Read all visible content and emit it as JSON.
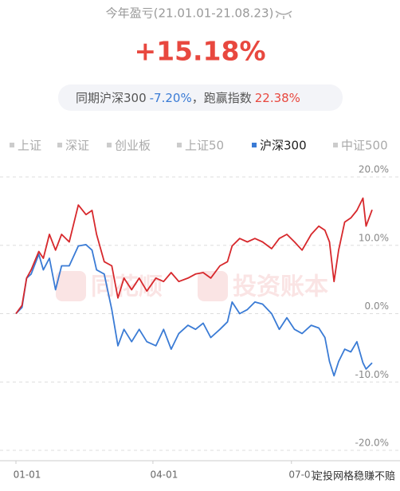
{
  "header": {
    "title": "今年盈亏(21.01.01-21.08.23)",
    "return": "+15.18%",
    "compare_label": "同期沪深300",
    "compare_value": "-7.20%",
    "beat_label": "，跑赢指数",
    "beat_value": "22.38%"
  },
  "legend": {
    "items": [
      "上证",
      "深证",
      "创业板",
      "上证50",
      "沪深300",
      "中证500"
    ],
    "selected": 4
  },
  "chart_data": {
    "type": "line",
    "x": [
      0,
      4,
      7,
      10,
      15,
      18,
      22,
      26,
      30,
      35,
      41,
      46,
      50,
      53,
      58,
      63,
      67,
      71,
      76,
      81,
      86,
      92,
      97,
      102,
      107,
      113,
      118,
      123,
      128,
      134,
      139,
      142,
      147,
      152,
      157,
      162,
      168,
      173,
      178,
      183,
      188,
      194,
      199,
      203,
      206,
      209,
      212,
      216,
      220,
      224,
      228,
      230,
      234
    ],
    "xlim": [
      0,
      234
    ],
    "xticks": [
      {
        "value": 0,
        "label": "01-01"
      },
      {
        "value": 90,
        "label": "04-01"
      },
      {
        "value": 181,
        "label": "07-01"
      }
    ],
    "ylim": [
      -20,
      20
    ],
    "yticks": [
      {
        "value": 20,
        "label": "20.0%"
      },
      {
        "value": 10,
        "label": "10.0%"
      },
      {
        "value": 0,
        "label": "0.0%"
      },
      {
        "value": -10,
        "label": "-10.0%"
      },
      {
        "value": -20,
        "label": "-20.0%"
      }
    ],
    "grid": true,
    "series": [
      {
        "color": "#d7282c",
        "values": [
          0,
          1.2,
          5.2,
          6.4,
          9.1,
          8.1,
          11.6,
          9.3,
          11.6,
          10.5,
          15.9,
          14.5,
          15.1,
          11.6,
          7.6,
          7.0,
          2.3,
          5.2,
          3.5,
          5.2,
          3.3,
          5.2,
          4.7,
          6.0,
          4.7,
          5.2,
          5.8,
          6.0,
          5.2,
          7.0,
          7.6,
          9.9,
          11.0,
          10.5,
          11.0,
          10.5,
          9.5,
          11.0,
          11.6,
          10.5,
          9.3,
          11.6,
          12.8,
          12.2,
          10.5,
          4.7,
          9.3,
          13.4,
          14.0,
          15.1,
          16.9,
          12.8,
          15.2
        ]
      },
      {
        "color": "#3a7bd5",
        "values": [
          0,
          0.9,
          5.2,
          5.8,
          8.7,
          6.4,
          8.1,
          3.5,
          7.0,
          7.0,
          9.9,
          10.1,
          9.3,
          6.4,
          5.8,
          0.6,
          -4.7,
          -2.3,
          -4.1,
          -2.3,
          -4.1,
          -4.7,
          -2.3,
          -5.2,
          -2.9,
          -1.7,
          -2.3,
          -1.4,
          -3.5,
          -2.3,
          -1.2,
          1.7,
          0,
          0.6,
          1.7,
          1.4,
          0,
          -2.3,
          -0.6,
          -2.3,
          -2.9,
          -1.7,
          -2.1,
          -3.5,
          -7.0,
          -9.1,
          -7.0,
          -5.2,
          -5.6,
          -4.1,
          -7.2,
          -8.1,
          -7.2
        ]
      }
    ]
  },
  "watermarks": [
    "同花顺",
    "投资账本"
  ],
  "footer": "定投网格稳赚不赔"
}
